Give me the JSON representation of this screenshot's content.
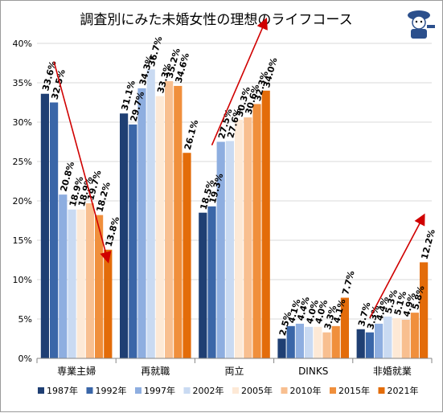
{
  "chart_data": {
    "type": "bar",
    "title": "調査別にみた未婚女性の理想のライフコース",
    "categories": [
      "専業主婦",
      "再就職",
      "両立",
      "DINKS",
      "非婚就業"
    ],
    "ylim": [
      0,
      40
    ],
    "yticks": [
      "0%",
      "5%",
      "10%",
      "15%",
      "20%",
      "25%",
      "30%",
      "35%",
      "40%"
    ],
    "grid": true,
    "legend_position": "bottom",
    "series": [
      {
        "name": "1987年",
        "color": "#1f3f73",
        "values": [
          33.6,
          31.1,
          18.5,
          2.5,
          3.7
        ]
      },
      {
        "name": "1992年",
        "color": "#3a66a8",
        "values": [
          32.5,
          29.7,
          19.3,
          4.1,
          3.3
        ]
      },
      {
        "name": "1997年",
        "color": "#8eaee0",
        "values": [
          20.8,
          34.3,
          27.5,
          4.4,
          4.4
        ]
      },
      {
        "name": "2002年",
        "color": "#c9daf2",
        "values": [
          18.9,
          36.7,
          27.6,
          4.0,
          5.3
        ]
      },
      {
        "name": "2005年",
        "color": "#fde9d6",
        "values": [
          18.9,
          33.3,
          30.3,
          4.0,
          5.1
        ]
      },
      {
        "name": "2010年",
        "color": "#f8bf90",
        "values": [
          19.7,
          35.2,
          30.6,
          3.3,
          4.9
        ]
      },
      {
        "name": "2015年",
        "color": "#f08f3c",
        "values": [
          18.2,
          34.6,
          32.3,
          4.1,
          5.8
        ]
      },
      {
        "name": "2021年",
        "color": "#e36c0a",
        "values": [
          13.8,
          26.1,
          34.0,
          7.7,
          12.2
        ]
      }
    ],
    "arrow_color": "#d00000"
  }
}
